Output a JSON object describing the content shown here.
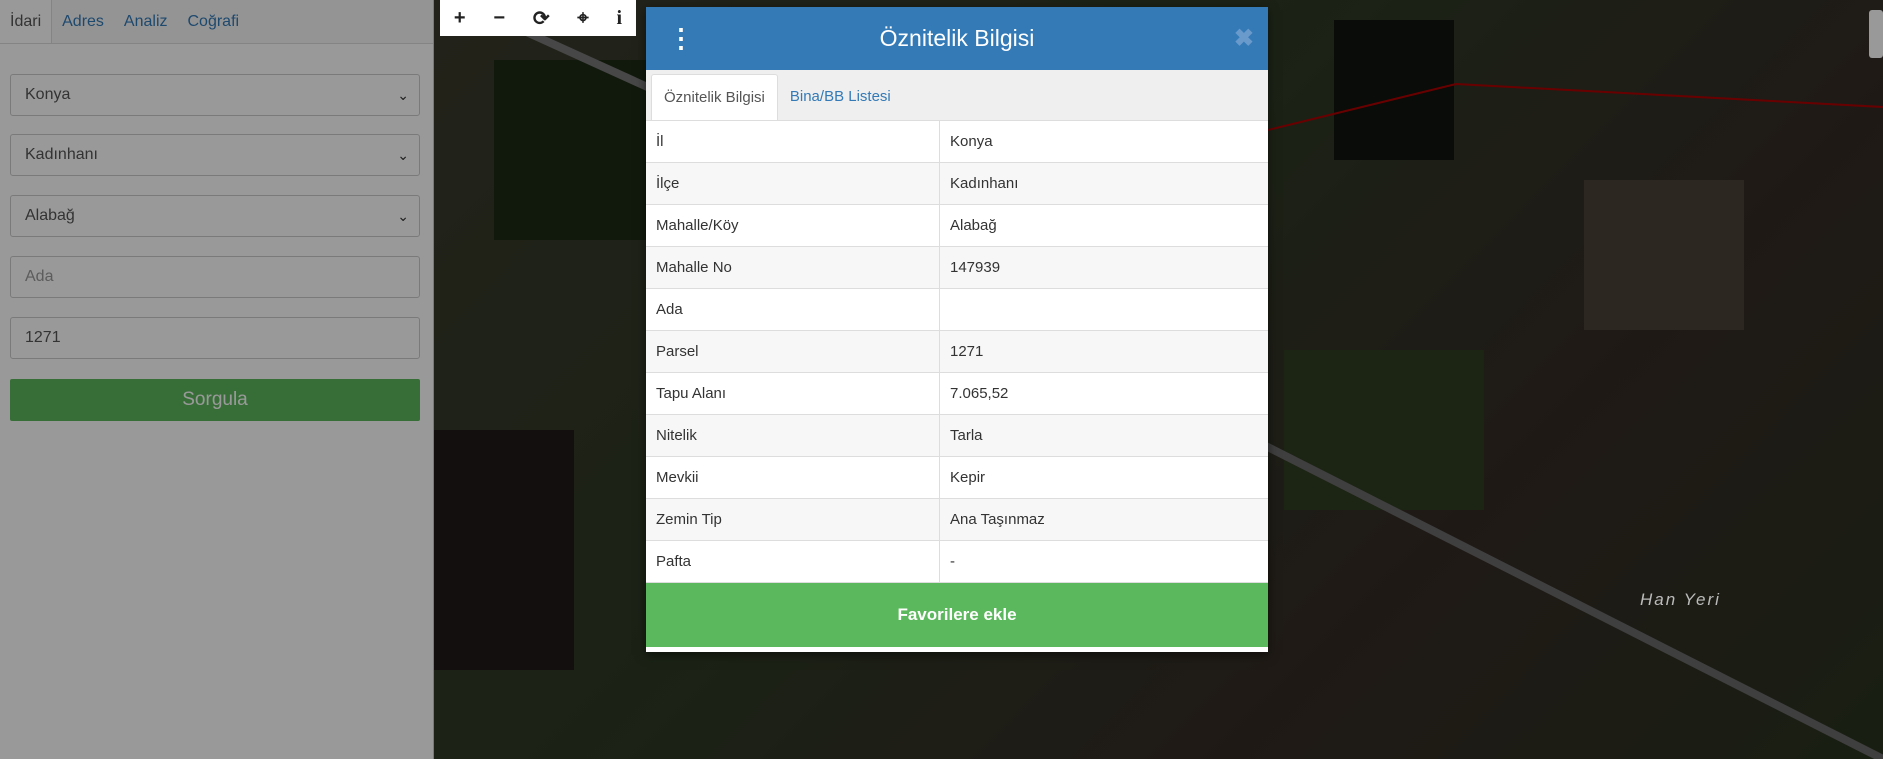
{
  "sidebar": {
    "tabs": [
      "İdari",
      "Adres",
      "Analiz",
      "Coğrafi"
    ],
    "il": "Konya",
    "ilce": "Kadınhanı",
    "mahalle": "Alabağ",
    "ada_placeholder": "Ada",
    "parsel_value": "1271",
    "query_button": "Sorgula"
  },
  "map": {
    "toolbar_icons": [
      "zoom-in-icon",
      "zoom-out-icon",
      "refresh-icon",
      "locate-icon",
      "info-icon"
    ],
    "toolbar": [
      "+",
      "−",
      "⟳",
      "⌖",
      "i"
    ],
    "place_label": "Han Yeri"
  },
  "modal": {
    "title": "Öznitelik Bilgisi",
    "menu": "⋮",
    "close": "✖",
    "tabs": [
      "Öznitelik Bilgisi",
      "Bina/BB Listesi"
    ],
    "rows": [
      {
        "k": "İl",
        "v": "Konya"
      },
      {
        "k": "İlçe",
        "v": "Kadınhanı"
      },
      {
        "k": "Mahalle/Köy",
        "v": "Alabağ"
      },
      {
        "k": "Mahalle No",
        "v": "147939"
      },
      {
        "k": "Ada",
        "v": ""
      },
      {
        "k": "Parsel",
        "v": "1271"
      },
      {
        "k": "Tapu Alanı",
        "v": "7.065,52"
      },
      {
        "k": "Nitelik",
        "v": "Tarla"
      },
      {
        "k": "Mevkii",
        "v": "Kepir"
      },
      {
        "k": "Zemin Tip",
        "v": "Ana Taşınmaz"
      },
      {
        "k": "Pafta",
        "v": "-"
      }
    ],
    "favorite_button": "Favorilere ekle"
  },
  "colors": {
    "primary": "#337ab7",
    "success": "#5cb85c",
    "parcel_line": "#b00000"
  }
}
